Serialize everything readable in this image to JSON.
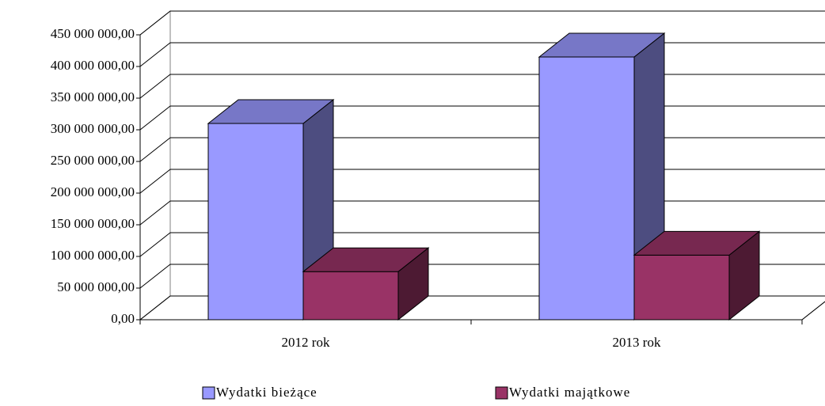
{
  "chart_data": {
    "type": "bar3d",
    "categories": [
      "2012 rok",
      "2013 rok"
    ],
    "series": [
      {
        "name": "Wydatki bieżące",
        "color": "#9999ff",
        "values": [
          310000000,
          415000000
        ]
      },
      {
        "name": "Wydatki majątkowe",
        "color": "#993366",
        "values": [
          76000000,
          102000000
        ]
      }
    ],
    "ylim": [
      0,
      450000000
    ],
    "yticks": [
      {
        "value": 0,
        "label": "0,00"
      },
      {
        "value": 50000000,
        "label": "50 000 000,00"
      },
      {
        "value": 100000000,
        "label": "100 000 000,00"
      },
      {
        "value": 150000000,
        "label": "150 000 000,00"
      },
      {
        "value": 200000000,
        "label": "200 000 000,00"
      },
      {
        "value": 250000000,
        "label": "250 000 000,00"
      },
      {
        "value": 300000000,
        "label": "300 000 000,00"
      },
      {
        "value": 350000000,
        "label": "350 000 000,00"
      },
      {
        "value": 400000000,
        "label": "400 000 000,00"
      },
      {
        "value": 450000000,
        "label": "450 000 000,00"
      }
    ],
    "grid": true,
    "legend": "bottom"
  }
}
